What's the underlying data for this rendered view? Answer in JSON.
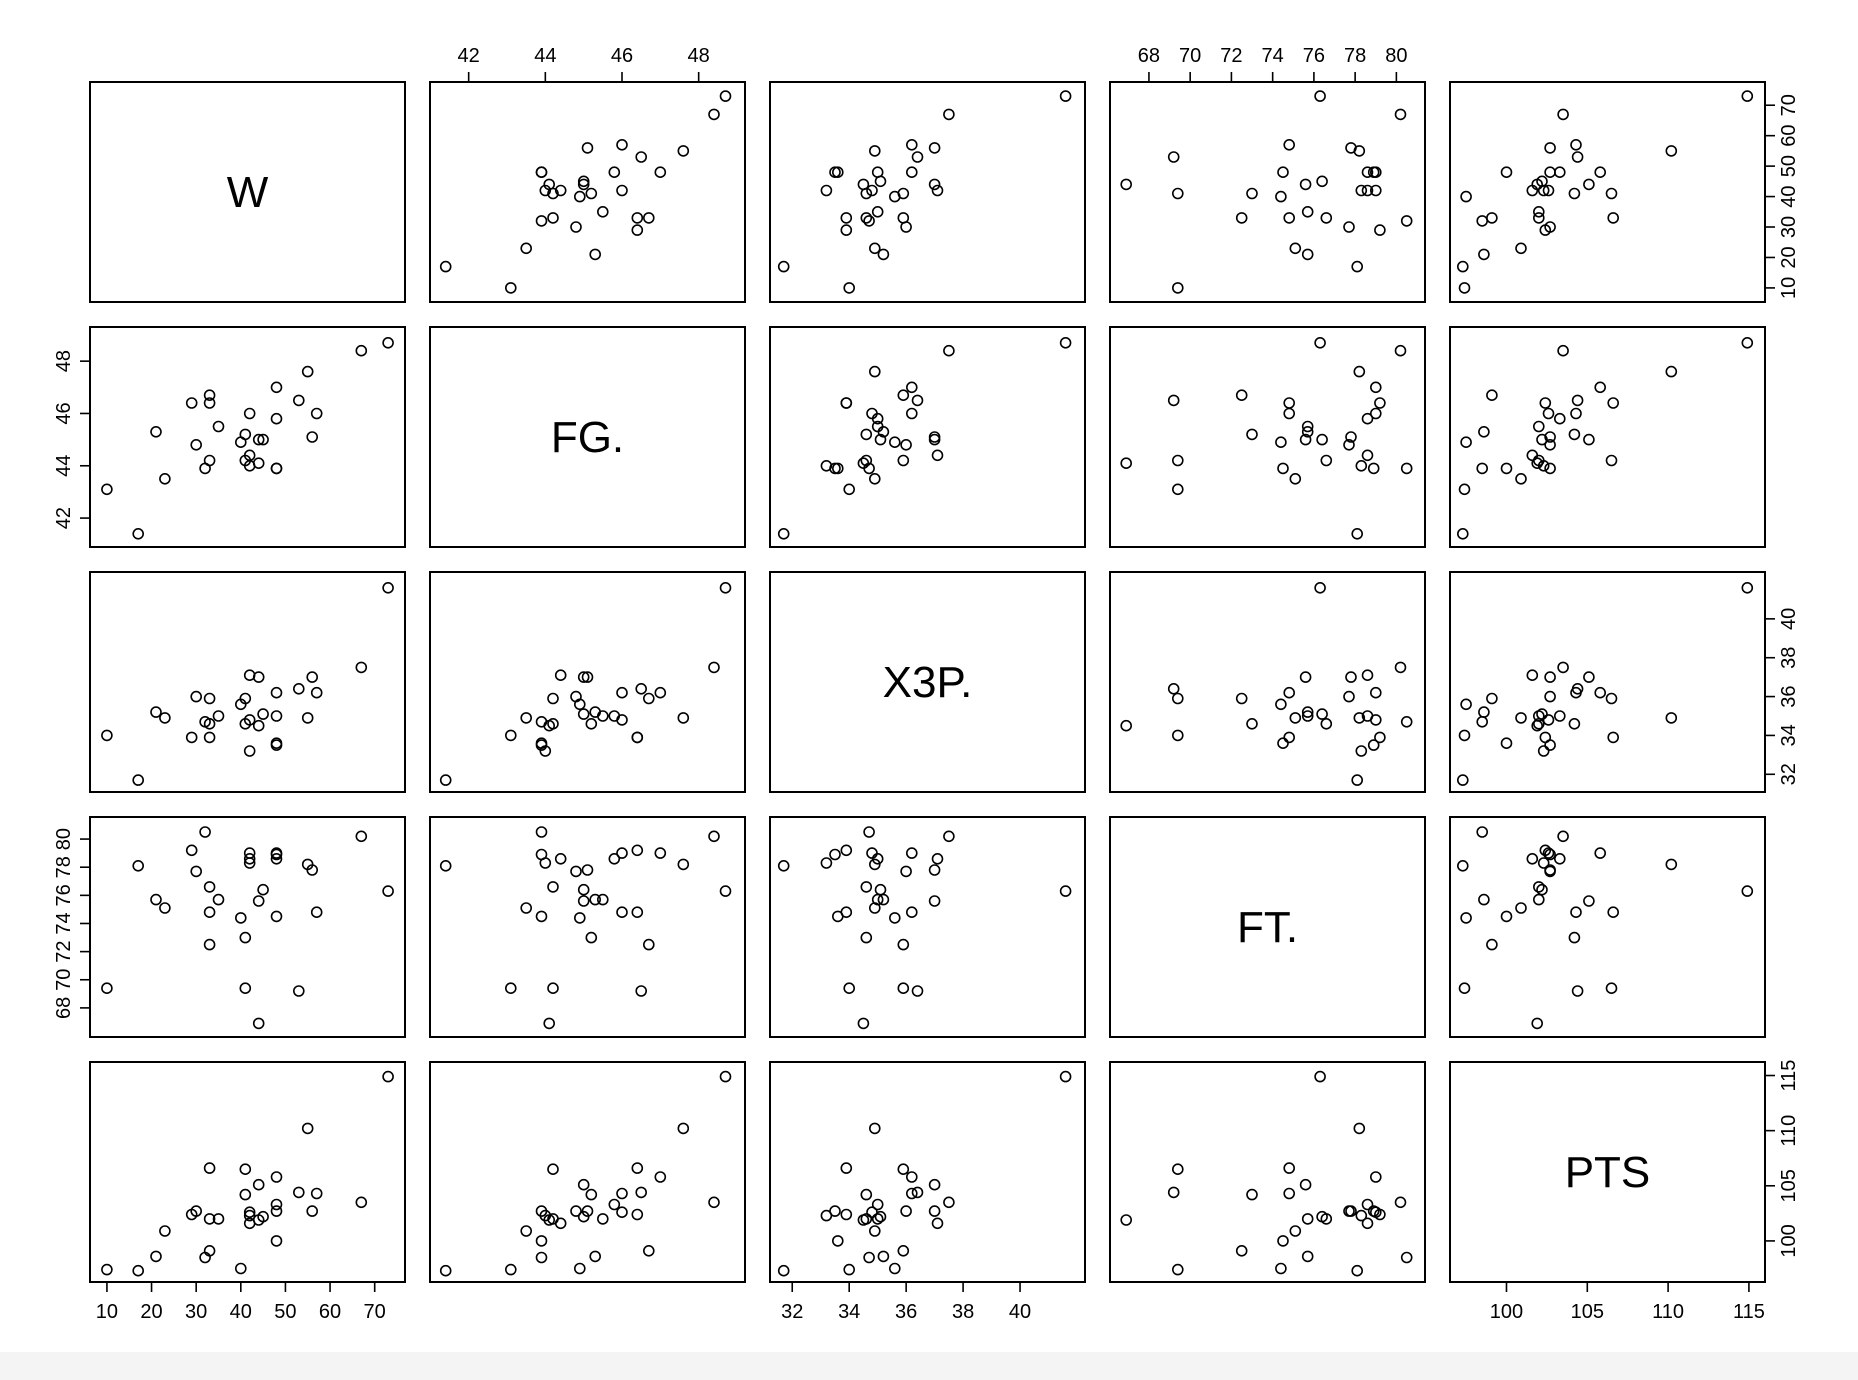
{
  "chart_data": {
    "type": "scatter",
    "kind": "pairs-matrix",
    "variables": [
      "W",
      "FG.",
      "X3P.",
      "FT.",
      "PTS"
    ],
    "axes": {
      "W": {
        "range": [
          8,
          75
        ],
        "ticks": [
          10,
          20,
          30,
          40,
          50,
          60,
          70
        ]
      },
      "FG.": {
        "range": [
          41.2,
          49.0
        ],
        "ticks": [
          42,
          44,
          46,
          48
        ]
      },
      "X3P.": {
        "range": [
          31.5,
          42.0
        ],
        "ticks": [
          32,
          34,
          36,
          38,
          40
        ]
      },
      "FT.": {
        "range": [
          66.5,
          81.0
        ],
        "ticks": [
          68,
          70,
          72,
          74,
          76,
          78,
          80
        ]
      },
      "PTS": {
        "range": [
          97.0,
          115.5
        ],
        "ticks": [
          100,
          105,
          110,
          115
        ]
      }
    },
    "outer_axes": {
      "top": [
        {
          "col": 1,
          "var": "FG."
        },
        {
          "col": 3,
          "var": "FT."
        }
      ],
      "bottom": [
        {
          "col": 0,
          "var": "W"
        },
        {
          "col": 2,
          "var": "X3P."
        },
        {
          "col": 4,
          "var": "PTS"
        }
      ],
      "left": [
        {
          "row": 1,
          "var": "FG."
        },
        {
          "row": 3,
          "var": "FT."
        }
      ],
      "right": [
        {
          "row": 0,
          "var": "W"
        },
        {
          "row": 2,
          "var": "X3P."
        },
        {
          "row": 4,
          "var": "PTS"
        }
      ]
    },
    "records": [
      {
        "W": 73,
        "FG.": 48.7,
        "X3P.": 41.6,
        "FT.": 76.3,
        "PTS": 114.9
      },
      {
        "W": 67,
        "FG.": 48.4,
        "X3P.": 37.5,
        "FT.": 80.2,
        "PTS": 103.5
      },
      {
        "W": 55,
        "FG.": 47.6,
        "X3P.": 34.9,
        "FT.": 78.2,
        "PTS": 110.2
      },
      {
        "W": 57,
        "FG.": 46.0,
        "X3P.": 36.2,
        "FT.": 74.8,
        "PTS": 104.3
      },
      {
        "W": 56,
        "FG.": 45.1,
        "X3P.": 37.0,
        "FT.": 77.8,
        "PTS": 102.7
      },
      {
        "W": 53,
        "FG.": 46.5,
        "X3P.": 36.4,
        "FT.": 69.2,
        "PTS": 104.4
      },
      {
        "W": 48,
        "FG.": 47.0,
        "X3P.": 36.2,
        "FT.": 79.0,
        "PTS": 105.8
      },
      {
        "W": 48,
        "FG.": 45.8,
        "X3P.": 35.0,
        "FT.": 78.6,
        "PTS": 103.3
      },
      {
        "W": 48,
        "FG.": 43.9,
        "X3P.": 33.6,
        "FT.": 74.5,
        "PTS": 100.0
      },
      {
        "W": 48,
        "FG.": 43.9,
        "X3P.": 33.5,
        "FT.": 78.9,
        "PTS": 102.7
      },
      {
        "W": 45,
        "FG.": 45.0,
        "X3P.": 35.1,
        "FT.": 76.4,
        "PTS": 102.2
      },
      {
        "W": 44,
        "FG.": 45.0,
        "X3P.": 37.0,
        "FT.": 75.6,
        "PTS": 105.1
      },
      {
        "W": 44,
        "FG.": 44.1,
        "X3P.": 34.5,
        "FT.": 66.9,
        "PTS": 101.9
      },
      {
        "W": 42,
        "FG.": 46.0,
        "X3P.": 34.8,
        "FT.": 79.0,
        "PTS": 102.6
      },
      {
        "W": 42,
        "FG.": 44.4,
        "X3P.": 37.1,
        "FT.": 78.6,
        "PTS": 101.6
      },
      {
        "W": 42,
        "FG.": 44.0,
        "X3P.": 33.2,
        "FT.": 78.3,
        "PTS": 102.3
      },
      {
        "W": 41,
        "FG.": 45.2,
        "X3P.": 34.6,
        "FT.": 73.0,
        "PTS": 104.2
      },
      {
        "W": 41,
        "FG.": 44.2,
        "X3P.": 35.9,
        "FT.": 69.4,
        "PTS": 106.5
      },
      {
        "W": 40,
        "FG.": 44.9,
        "X3P.": 35.6,
        "FT.": 74.4,
        "PTS": 97.5
      },
      {
        "W": 35,
        "FG.": 45.5,
        "X3P.": 35.0,
        "FT.": 75.7,
        "PTS": 102.0
      },
      {
        "W": 33,
        "FG.": 46.4,
        "X3P.": 33.9,
        "FT.": 74.8,
        "PTS": 106.6
      },
      {
        "W": 33,
        "FG.": 46.7,
        "X3P.": 35.9,
        "FT.": 72.5,
        "PTS": 99.1
      },
      {
        "W": 33,
        "FG.": 44.2,
        "X3P.": 34.6,
        "FT.": 76.6,
        "PTS": 102.0
      },
      {
        "W": 32,
        "FG.": 43.9,
        "X3P.": 34.7,
        "FT.": 80.5,
        "PTS": 98.5
      },
      {
        "W": 30,
        "FG.": 44.8,
        "X3P.": 36.0,
        "FT.": 77.7,
        "PTS": 102.7
      },
      {
        "W": 29,
        "FG.": 46.4,
        "X3P.": 33.9,
        "FT.": 79.2,
        "PTS": 102.4
      },
      {
        "W": 23,
        "FG.": 43.5,
        "X3P.": 34.9,
        "FT.": 75.1,
        "PTS": 100.9
      },
      {
        "W": 21,
        "FG.": 45.3,
        "X3P.": 35.2,
        "FT.": 75.7,
        "PTS": 98.6
      },
      {
        "W": 17,
        "FG.": 41.4,
        "X3P.": 31.7,
        "FT.": 78.1,
        "PTS": 97.3
      },
      {
        "W": 10,
        "FG.": 43.1,
        "X3P.": 34.0,
        "FT.": 69.4,
        "PTS": 97.4
      }
    ]
  }
}
